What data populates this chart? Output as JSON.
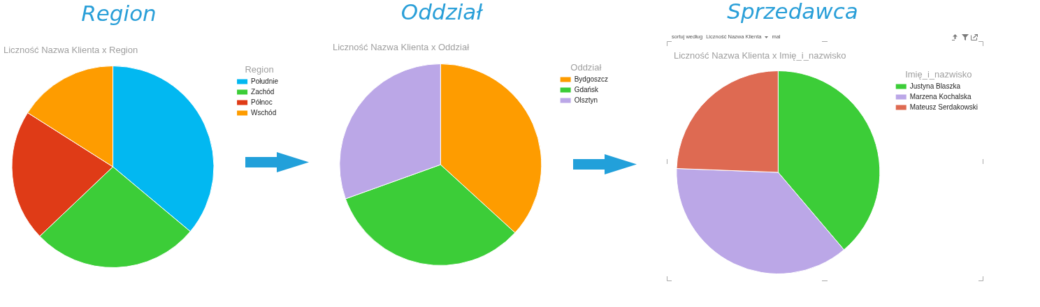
{
  "chart_data": [
    {
      "type": "pie",
      "title": "Region",
      "subtitle": "Liczność Nazwa Klienta x Region",
      "legend_title": "Region",
      "categories": [
        "Południe",
        "Zachód",
        "Północ",
        "Wschód"
      ],
      "values": [
        36.1,
        26.8,
        21.1,
        16.0
      ],
      "colors": [
        "#02b8f1",
        "#3ccd38",
        "#df3b17",
        "#fe9c00"
      ],
      "legend": "top right"
    },
    {
      "type": "pie",
      "title": "Oddział",
      "subtitle": "Liczność Nazwa Klienta x Oddział",
      "legend_title": "Oddział",
      "categories": [
        "Bydgoszcz",
        "Gdańsk",
        "Olsztyn"
      ],
      "values": [
        36.8,
        32.7,
        30.5
      ],
      "colors": [
        "#fe9c00",
        "#3ccd38",
        "#bba7e7"
      ],
      "legend": "top right"
    },
    {
      "type": "pie",
      "title": "Sprzedawca",
      "subtitle": "Liczność Nazwa Klienta x Imię_i_nazwisko",
      "legend_title": "Imię_i_nazwisko",
      "categories": [
        "Justyna Blaszka",
        "Marzena Kochalska",
        "Mateusz Serdakowski"
      ],
      "values": [
        38.8,
        36.8,
        24.4
      ],
      "colors": [
        "#3ccd38",
        "#bba7e7",
        "#de6a52"
      ],
      "legend": "top right",
      "annotations": [
        "sortuj według",
        "Liczność Nazwa Klienta",
        "mal"
      ]
    }
  ]
}
